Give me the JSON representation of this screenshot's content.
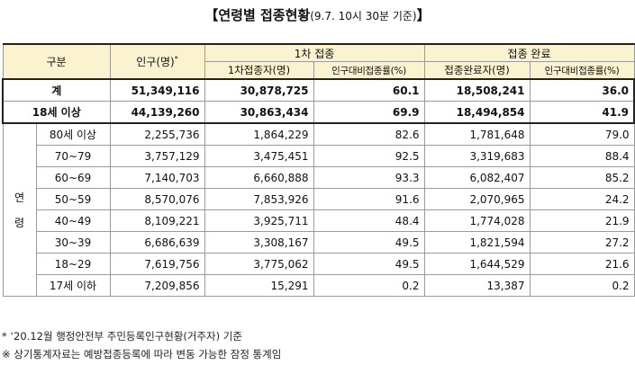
{
  "title": {
    "main": "【연령별 접종현황",
    "sub": "(9.7. 10시 30분 기준)",
    "end": "】"
  },
  "header": {
    "category": "구분",
    "population": "인구(명)",
    "population_mark": "*",
    "dose1": "1차 접종",
    "complete": "접종 완료",
    "dose1_count": "1차접종자(명)",
    "dose1_rate": "인구대비접종률(%)",
    "complete_count": "접종완료자(명)",
    "complete_rate": "인구대비접종률(%)"
  },
  "age_group_label": "연령",
  "rows": [
    {
      "label": "계",
      "population": "51,349,116",
      "dose1": "30,878,725",
      "dose1_rate": "60.1",
      "complete": "18,508,241",
      "complete_rate": "36.0"
    },
    {
      "label": "18세 이상",
      "population": "44,139,260",
      "dose1": "30,863,434",
      "dose1_rate": "69.9",
      "complete": "18,494,854",
      "complete_rate": "41.9"
    },
    {
      "label": "80세 이상",
      "population": "2,255,736",
      "dose1": "1,864,229",
      "dose1_rate": "82.6",
      "complete": "1,781,648",
      "complete_rate": "79.0"
    },
    {
      "label": "70~79",
      "population": "3,757,129",
      "dose1": "3,475,451",
      "dose1_rate": "92.5",
      "complete": "3,319,683",
      "complete_rate": "88.4"
    },
    {
      "label": "60~69",
      "population": "7,140,703",
      "dose1": "6,660,888",
      "dose1_rate": "93.3",
      "complete": "6,082,407",
      "complete_rate": "85.2"
    },
    {
      "label": "50~59",
      "population": "8,570,076",
      "dose1": "7,853,926",
      "dose1_rate": "91.6",
      "complete": "2,070,965",
      "complete_rate": "24.2"
    },
    {
      "label": "40~49",
      "population": "8,109,221",
      "dose1": "3,925,711",
      "dose1_rate": "48.4",
      "complete": "1,774,028",
      "complete_rate": "21.9"
    },
    {
      "label": "30~39",
      "population": "6,686,639",
      "dose1": "3,308,167",
      "dose1_rate": "49.5",
      "complete": "1,821,594",
      "complete_rate": "27.2"
    },
    {
      "label": "18~29",
      "population": "7,619,756",
      "dose1": "3,775,062",
      "dose1_rate": "49.5",
      "complete": "1,644,529",
      "complete_rate": "21.6"
    },
    {
      "label": "17세 이하",
      "population": "7,209,856",
      "dose1": "15,291",
      "dose1_rate": "0.2",
      "complete": "13,387",
      "complete_rate": "0.2"
    }
  ],
  "notes": [
    "* ‘20.12월 행정안전부 주민등록인구현황(거주자) 기준",
    "※ 상기통계자료는 예방접종등록에 따라 변동 가능한 잠정 통계임"
  ]
}
